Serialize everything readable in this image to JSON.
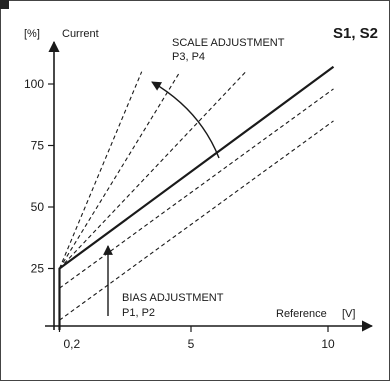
{
  "badge": "S1, S2",
  "axes": {
    "y_unit": "[%]",
    "y_label": "Current",
    "x_label": "Reference",
    "x_unit": "[V]"
  },
  "annotations": {
    "scale_title": "SCALE ADJUSTMENT",
    "scale_params": "P3, P4",
    "bias_title": "BIAS ADJUSTMENT",
    "bias_params": "P1, P2"
  },
  "chart_data": {
    "type": "line",
    "xlabel": "Reference [V]",
    "ylabel": "[%] Current",
    "xlim": [
      0,
      10.5
    ],
    "ylim": [
      0,
      110
    ],
    "x_ticks": [
      "0,2",
      "5",
      "10"
    ],
    "y_ticks": [
      "25",
      "50",
      "75",
      "100"
    ],
    "series": [
      {
        "style": "solid",
        "x": [
          0.2,
          0.2,
          10.2
        ],
        "y": [
          0,
          25,
          107
        ]
      },
      {
        "style": "dashed",
        "x": [
          0.2,
          3.2
        ],
        "y": [
          25,
          105
        ]
      },
      {
        "style": "dashed",
        "x": [
          0.2,
          4.6
        ],
        "y": [
          25,
          105
        ]
      },
      {
        "style": "dashed",
        "x": [
          0.2,
          7.0
        ],
        "y": [
          25,
          105
        ]
      },
      {
        "style": "dashed",
        "x": [
          0.2,
          10.2
        ],
        "y": [
          17,
          98
        ]
      },
      {
        "style": "dashed",
        "x": [
          0.2,
          10.2
        ],
        "y": [
          4,
          85
        ]
      }
    ]
  }
}
